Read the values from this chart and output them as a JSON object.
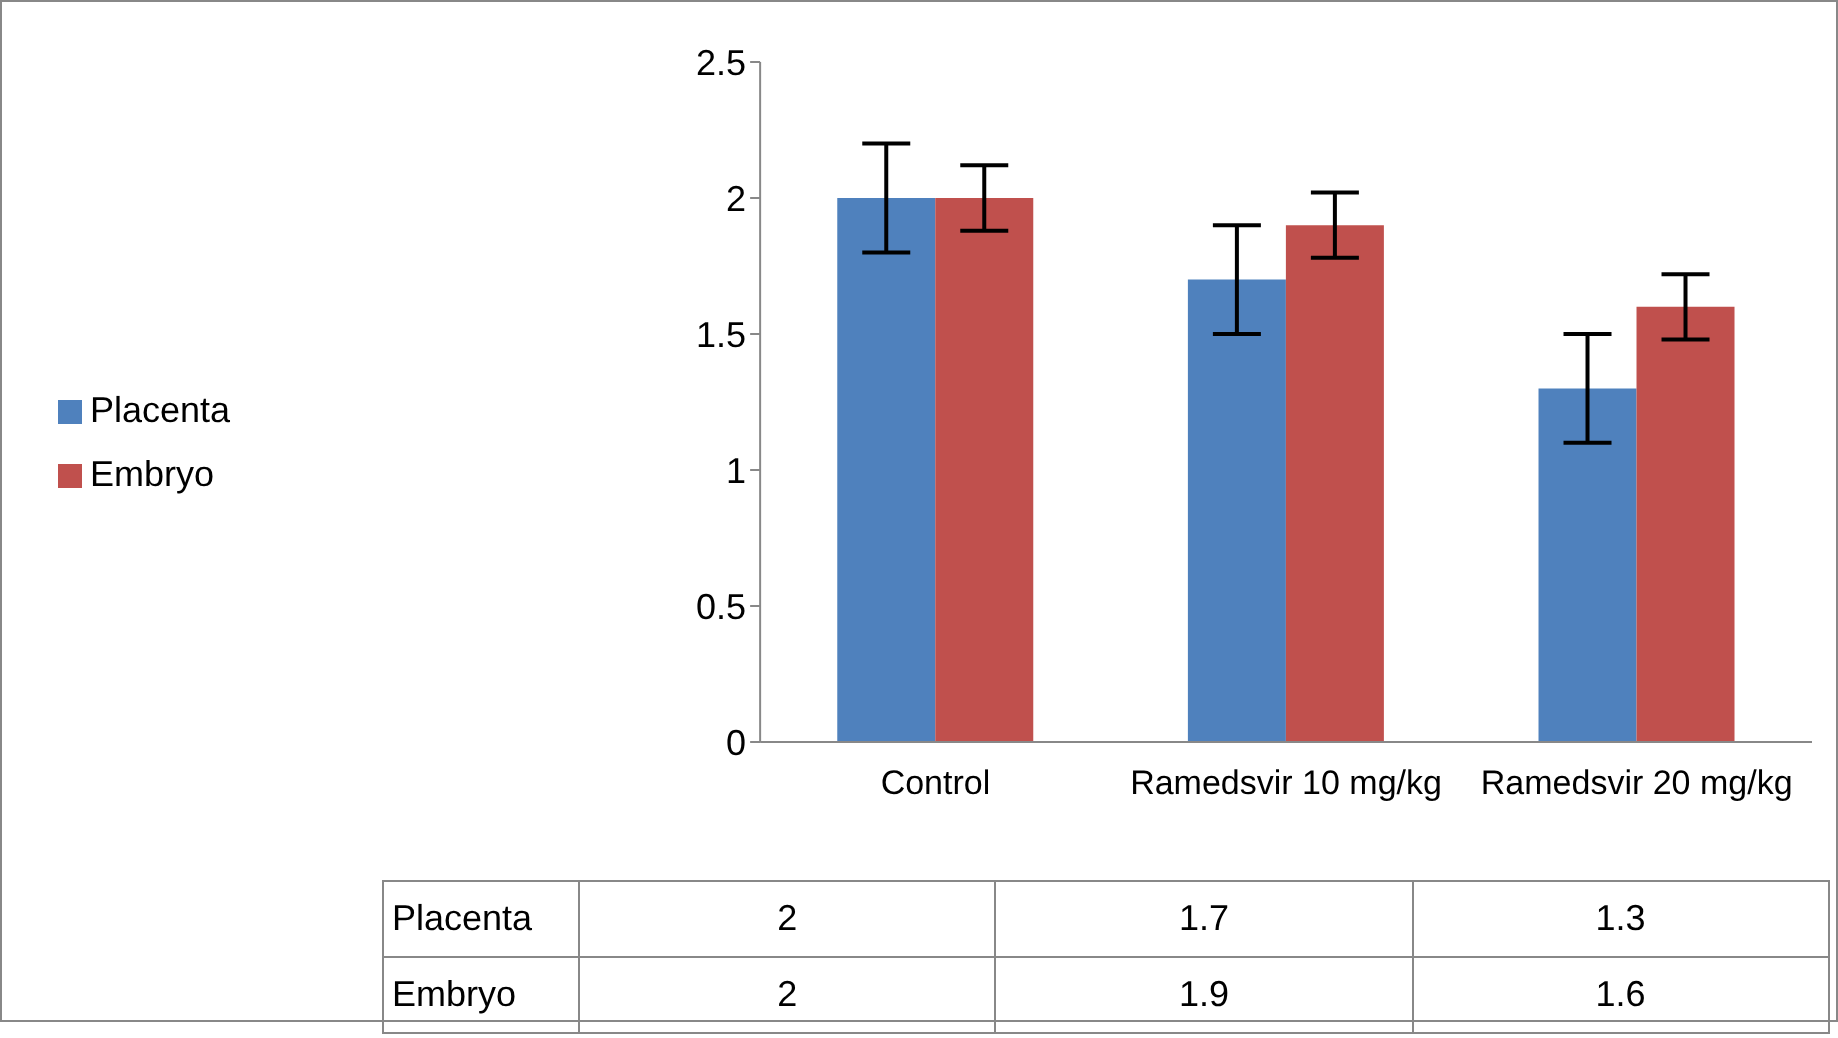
{
  "chart_data": {
    "type": "bar",
    "categories": [
      "Control",
      "Ramedsvir 10 mg/kg",
      "Ramedsvir 20 mg/kg"
    ],
    "series": [
      {
        "name": "Placenta",
        "color": "#4f81bd",
        "values": [
          2,
          1.7,
          1.3
        ],
        "errors": [
          0.2,
          0.2,
          0.2
        ]
      },
      {
        "name": "Embryo",
        "color": "#c0504d",
        "values": [
          2,
          1.9,
          1.6
        ],
        "errors": [
          0.12,
          0.12,
          0.12
        ]
      }
    ],
    "ylim": [
      0,
      2.5
    ],
    "yticks": [
      0,
      0.5,
      1,
      1.5,
      2,
      2.5
    ],
    "grid": false,
    "legend": "left",
    "data_labels": true
  }
}
